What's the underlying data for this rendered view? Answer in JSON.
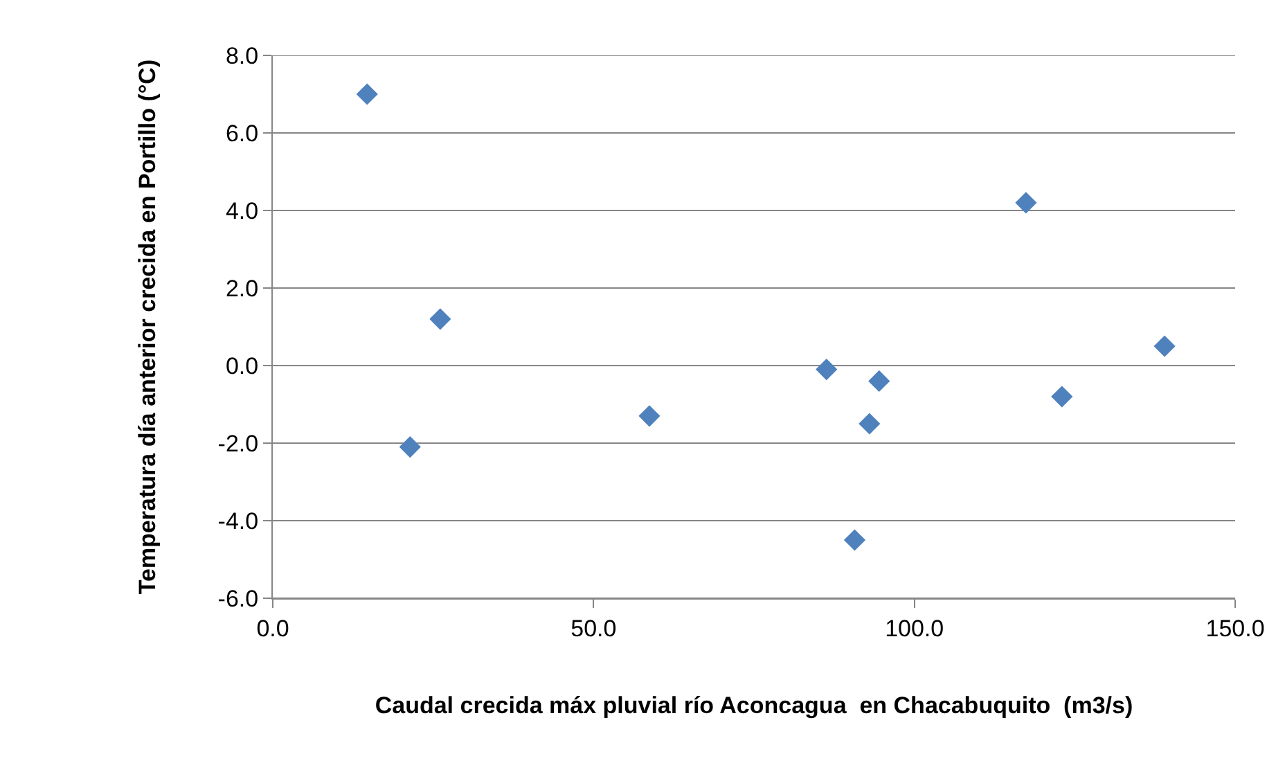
{
  "chart_data": {
    "type": "scatter",
    "xlabel": "Caudal crecida máx pluvial río Aconcagua  en Chacabuquito  (m3/s)",
    "ylabel": "Temperatura día anterior crecida en Portillo (°C)",
    "series": [
      {
        "color": "#4f81bd",
        "x": [
          14.7,
          21.4,
          26.1,
          58.7,
          86.3,
          90.7,
          93.0,
          94.5,
          117.4,
          123.0,
          139.0
        ],
        "values": [
          7.0,
          -2.1,
          1.2,
          -1.3,
          -0.1,
          -4.5,
          -1.5,
          -0.4,
          4.2,
          -0.8,
          0.5
        ]
      }
    ],
    "xlim": [
      0,
      150
    ],
    "xticks": [
      {
        "value": 0,
        "label": "0.0"
      },
      {
        "value": 50,
        "label": "50.0"
      },
      {
        "value": 100,
        "label": "100.0"
      },
      {
        "value": 150,
        "label": "150.0"
      }
    ],
    "ylim": [
      -6,
      8
    ],
    "yticks": [
      {
        "value": -6,
        "label": "-6.0"
      },
      {
        "value": -4,
        "label": "-4.0"
      },
      {
        "value": -2,
        "label": "-2.0"
      },
      {
        "value": 0,
        "label": "0.0"
      },
      {
        "value": 2,
        "label": "2.0"
      },
      {
        "value": 4,
        "label": "4.0"
      },
      {
        "value": 6,
        "label": "6.0"
      },
      {
        "value": 8,
        "label": "8.0"
      }
    ],
    "grid": "y",
    "marker": "diamond"
  }
}
